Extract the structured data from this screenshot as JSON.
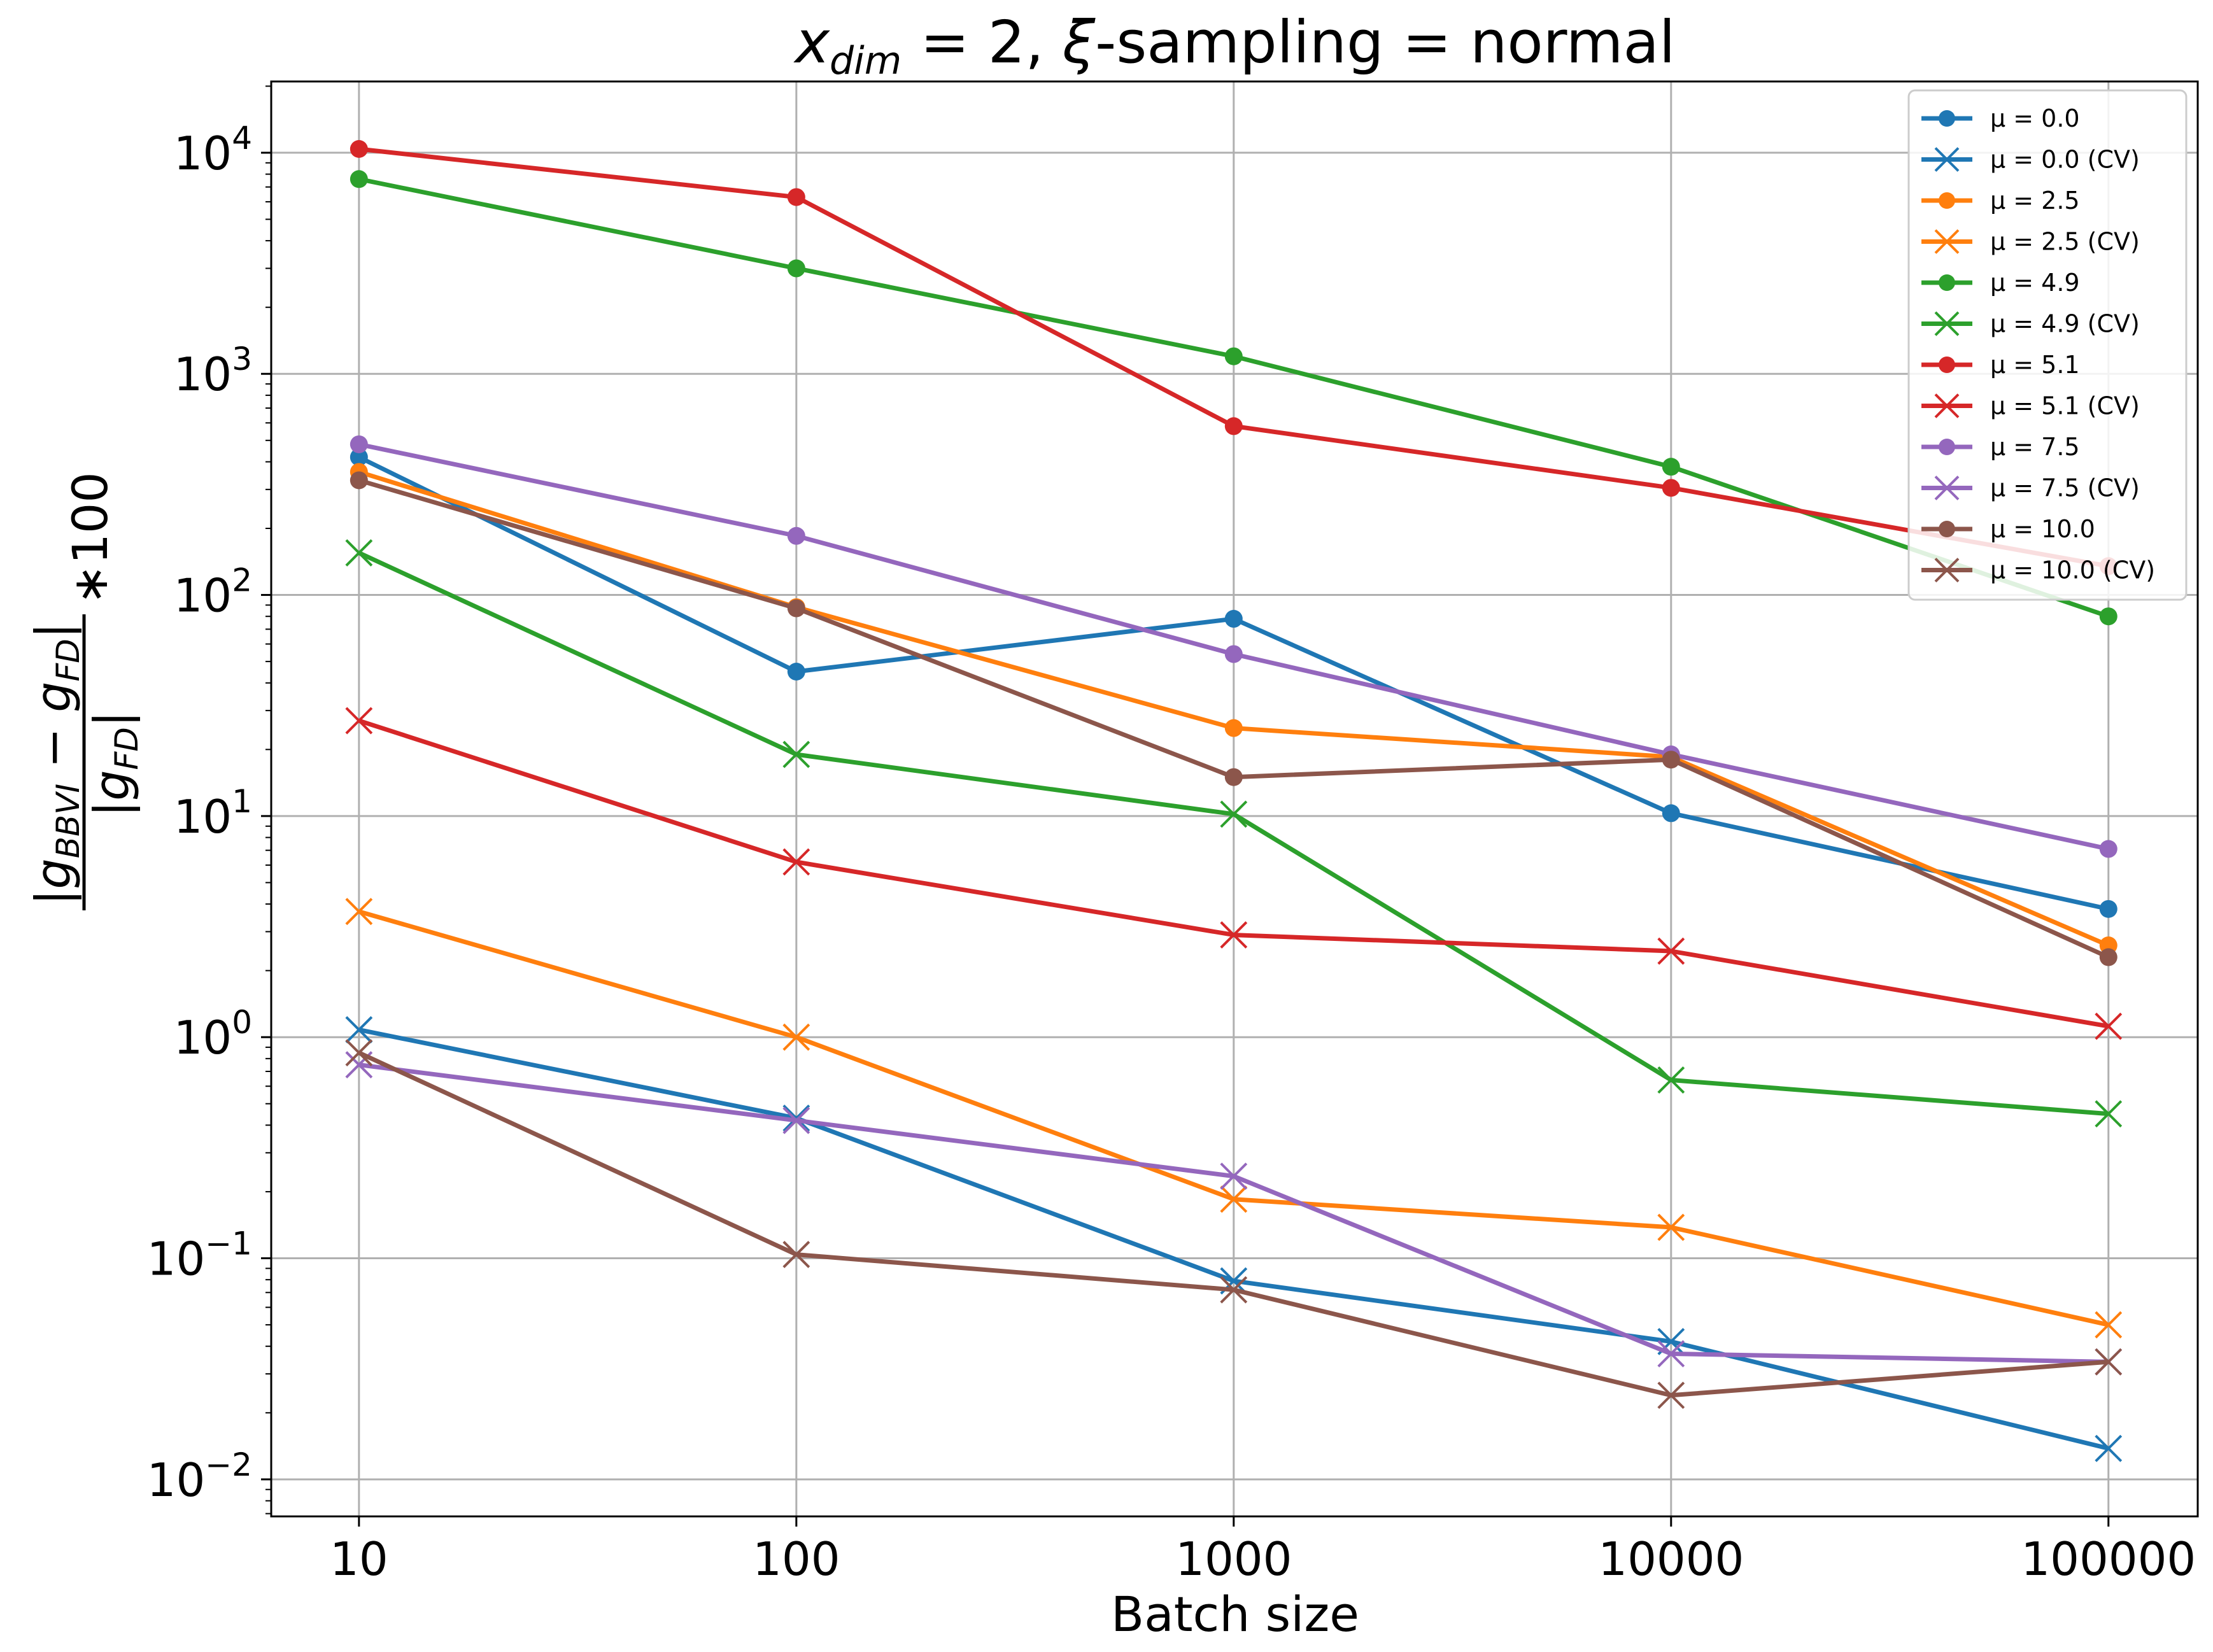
{
  "chart_data": {
    "type": "line",
    "title_parts": {
      "var": "x",
      "sub": "dim",
      "rest1": " = 2, ",
      "xi": "ξ",
      "rest2": "-sampling = normal"
    },
    "xlabel": "Batch size",
    "ylabel": "|g_BBVI − g_FD| / |g_FD| * 100",
    "x_scale": "log",
    "y_scale": "log",
    "x": [
      10,
      100,
      1000,
      10000,
      100000
    ],
    "x_tick_labels": [
      "10",
      "100",
      "1000",
      "10000",
      "100000"
    ],
    "y_ticks": [
      {
        "value": 0.01,
        "base": "10",
        "exp": "−2"
      },
      {
        "value": 0.1,
        "base": "10",
        "exp": "−1"
      },
      {
        "value": 1,
        "base": "10",
        "exp": "0"
      },
      {
        "value": 10,
        "base": "10",
        "exp": "1"
      },
      {
        "value": 100,
        "base": "10",
        "exp": "2"
      },
      {
        "value": 1000,
        "base": "10",
        "exp": "3"
      },
      {
        "value": 10000,
        "base": "10",
        "exp": "4"
      }
    ],
    "xlim": [
      6.3,
      160000
    ],
    "ylim": [
      0.0068,
      21000
    ],
    "grid": true,
    "legend_position": "top-right",
    "series": [
      {
        "name": "μ = 0.0",
        "color": "#1f77b4",
        "marker": "circle",
        "values": [
          420,
          45,
          78,
          10.3,
          3.8
        ]
      },
      {
        "name": "μ = 0.0 (CV)",
        "color": "#1f77b4",
        "marker": "x",
        "values": [
          1.08,
          0.43,
          0.079,
          0.042,
          0.0138
        ]
      },
      {
        "name": "μ = 2.5",
        "color": "#ff7f0e",
        "marker": "circle",
        "values": [
          360,
          88,
          25,
          18.5,
          2.6
        ]
      },
      {
        "name": "μ = 2.5 (CV)",
        "color": "#ff7f0e",
        "marker": "x",
        "values": [
          3.7,
          1.0,
          0.185,
          0.138,
          0.05
        ]
      },
      {
        "name": "μ = 4.9",
        "color": "#2ca02c",
        "marker": "circle",
        "values": [
          7600,
          3000,
          1200,
          380,
          80
        ]
      },
      {
        "name": "μ = 4.9 (CV)",
        "color": "#2ca02c",
        "marker": "x",
        "values": [
          155,
          19,
          10.2,
          0.64,
          0.45
        ]
      },
      {
        "name": "μ = 5.1",
        "color": "#d62728",
        "marker": "circle",
        "values": [
          10400,
          6300,
          580,
          305,
          135
        ]
      },
      {
        "name": "μ = 5.1 (CV)",
        "color": "#d62728",
        "marker": "x",
        "values": [
          27,
          6.2,
          2.9,
          2.45,
          1.12
        ]
      },
      {
        "name": "μ = 7.5",
        "color": "#9467bd",
        "marker": "circle",
        "values": [
          480,
          185,
          54,
          19,
          7.1
        ]
      },
      {
        "name": "μ = 7.5 (CV)",
        "color": "#9467bd",
        "marker": "x",
        "values": [
          0.75,
          0.42,
          0.235,
          0.037,
          0.034
        ]
      },
      {
        "name": "μ = 10.0",
        "color": "#8c564b",
        "marker": "circle",
        "values": [
          330,
          87,
          15,
          18,
          2.3
        ]
      },
      {
        "name": "μ = 10.0 (CV)",
        "color": "#8c564b",
        "marker": "x",
        "values": [
          0.85,
          0.104,
          0.072,
          0.024,
          0.034
        ]
      }
    ]
  }
}
